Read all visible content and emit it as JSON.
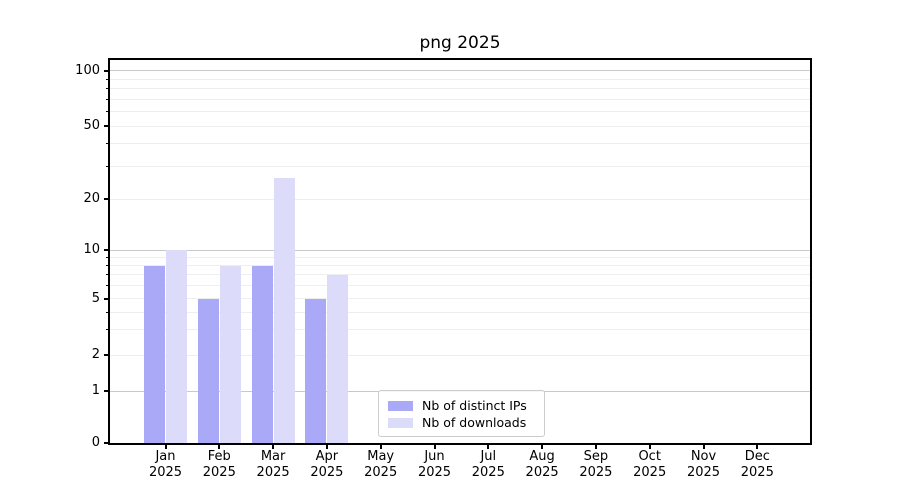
{
  "figure": {
    "background": "#ffffff"
  },
  "chart_data": {
    "type": "bar",
    "title": "png 2025",
    "categories": [
      "Jan",
      "Feb",
      "Mar",
      "Apr",
      "May",
      "Jun",
      "Jul",
      "Aug",
      "Sep",
      "Oct",
      "Nov",
      "Dec"
    ],
    "category_year": "2025",
    "series": [
      {
        "name": "Nb of distinct IPs",
        "color": "#a9a9f8",
        "values": [
          8,
          5,
          8,
          5,
          0,
          0,
          0,
          0,
          0,
          0,
          0,
          0
        ]
      },
      {
        "name": "Nb of downloads",
        "color": "#dcdcfa",
        "values": [
          10,
          8,
          26,
          7,
          0,
          0,
          0,
          0,
          0,
          0,
          0,
          0
        ]
      }
    ],
    "y_axis": {
      "scale": "log-like (log(1+x))",
      "tick_labels": [
        "100",
        "50",
        "20",
        "10",
        "5",
        "2",
        "1",
        "0"
      ],
      "tick_values": [
        100,
        50,
        20,
        10,
        5,
        2,
        1,
        0
      ],
      "minor_values": [
        3,
        4,
        6,
        7,
        8,
        9,
        30,
        40,
        60,
        70,
        80,
        90
      ],
      "major_grid_values": [
        1,
        10,
        100
      ],
      "ylim": [
        0,
        113
      ]
    },
    "grid": true,
    "legend_position": "inside-bottom-center"
  },
  "colors": {
    "major_grid": "#c9c9c9",
    "minor_grid": "#eeeeee",
    "spine": "#000000",
    "text": "#000000",
    "legend_border": "#cccccc"
  }
}
